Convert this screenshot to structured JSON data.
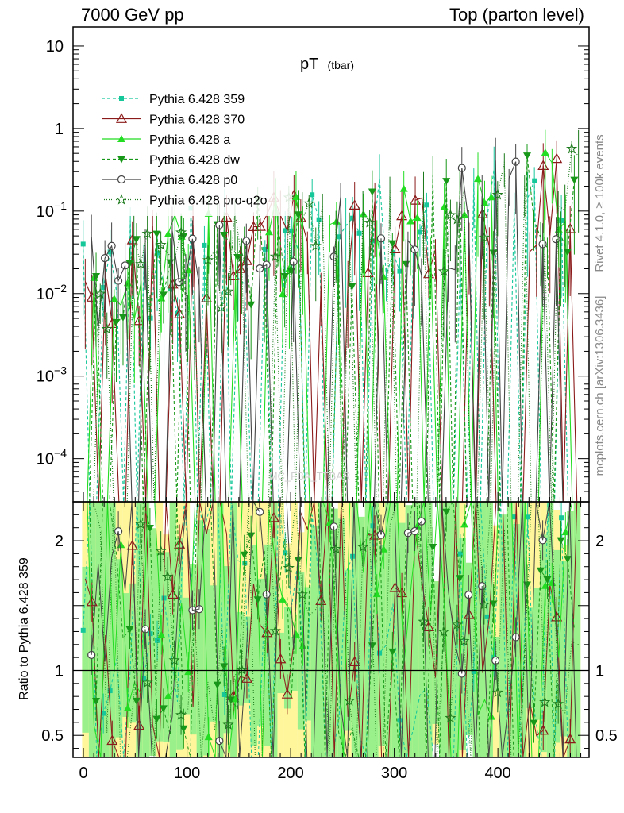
{
  "header": {
    "left": "7000 GeV pp",
    "right": "Top (parton level)"
  },
  "side_labels": {
    "rivet": "Rivet 4.1.0, ≥ 100k events",
    "mcplots": "mcplots.cern.ch [arXiv:1306.3436]"
  },
  "watermark": "MC_FBA_TTBAR",
  "chart_data": {
    "type": "line",
    "title": "pT",
    "title_sub": "(tbar)",
    "xlabel": "",
    "ylabel": "",
    "ratio_ylabel": "Ratio to Pythia 6.428 359",
    "xlim": [
      -10,
      488
    ],
    "ylim": [
      3e-05,
      17
    ],
    "ylog": true,
    "ratio_ylim": [
      0.33,
      2.3
    ],
    "x_ticks": [
      "0",
      "100",
      "200",
      "300",
      "400"
    ],
    "y_ticks": [
      {
        "base": "10",
        "exp": ""
      },
      {
        "base": "1",
        "exp": ""
      },
      {
        "base": "10",
        "exp": "−1"
      },
      {
        "base": "10",
        "exp": "−2"
      },
      {
        "base": "10",
        "exp": "−3"
      },
      {
        "base": "10",
        "exp": "−4"
      }
    ],
    "ratio_ticks": [
      "2",
      "1",
      "0.5"
    ],
    "legend_position": "top-left",
    "legend": [
      {
        "label": "Pythia 6.428 359",
        "color": "#16c79a",
        "marker": "square-filled",
        "dash": "4,3"
      },
      {
        "label": "Pythia 6.428 370",
        "color": "#8b1a1a",
        "marker": "triangle-open",
        "dash": ""
      },
      {
        "label": "Pythia 6.428 a",
        "color": "#22dd22",
        "marker": "triangle-filled",
        "dash": ""
      },
      {
        "label": "Pythia 6.428 dw",
        "color": "#189818",
        "marker": "triangle-down-filled",
        "dash": "4,3"
      },
      {
        "label": "Pythia 6.428 p0",
        "color": "#444444",
        "marker": "circle-open",
        "dash": ""
      },
      {
        "label": "Pythia 6.428 pro-q2o",
        "color": "#1c7a1c",
        "marker": "star-open",
        "dash": "1,2"
      }
    ],
    "series_trend": {
      "x_start": 2,
      "x_step": 6.5,
      "x_end": 478,
      "baseline_low": [
        0.01,
        0.012
      ],
      "baseline_high": [
        0.12,
        0.2
      ],
      "dip_floor": 3e-05
    },
    "ratio_reference": 1
  }
}
